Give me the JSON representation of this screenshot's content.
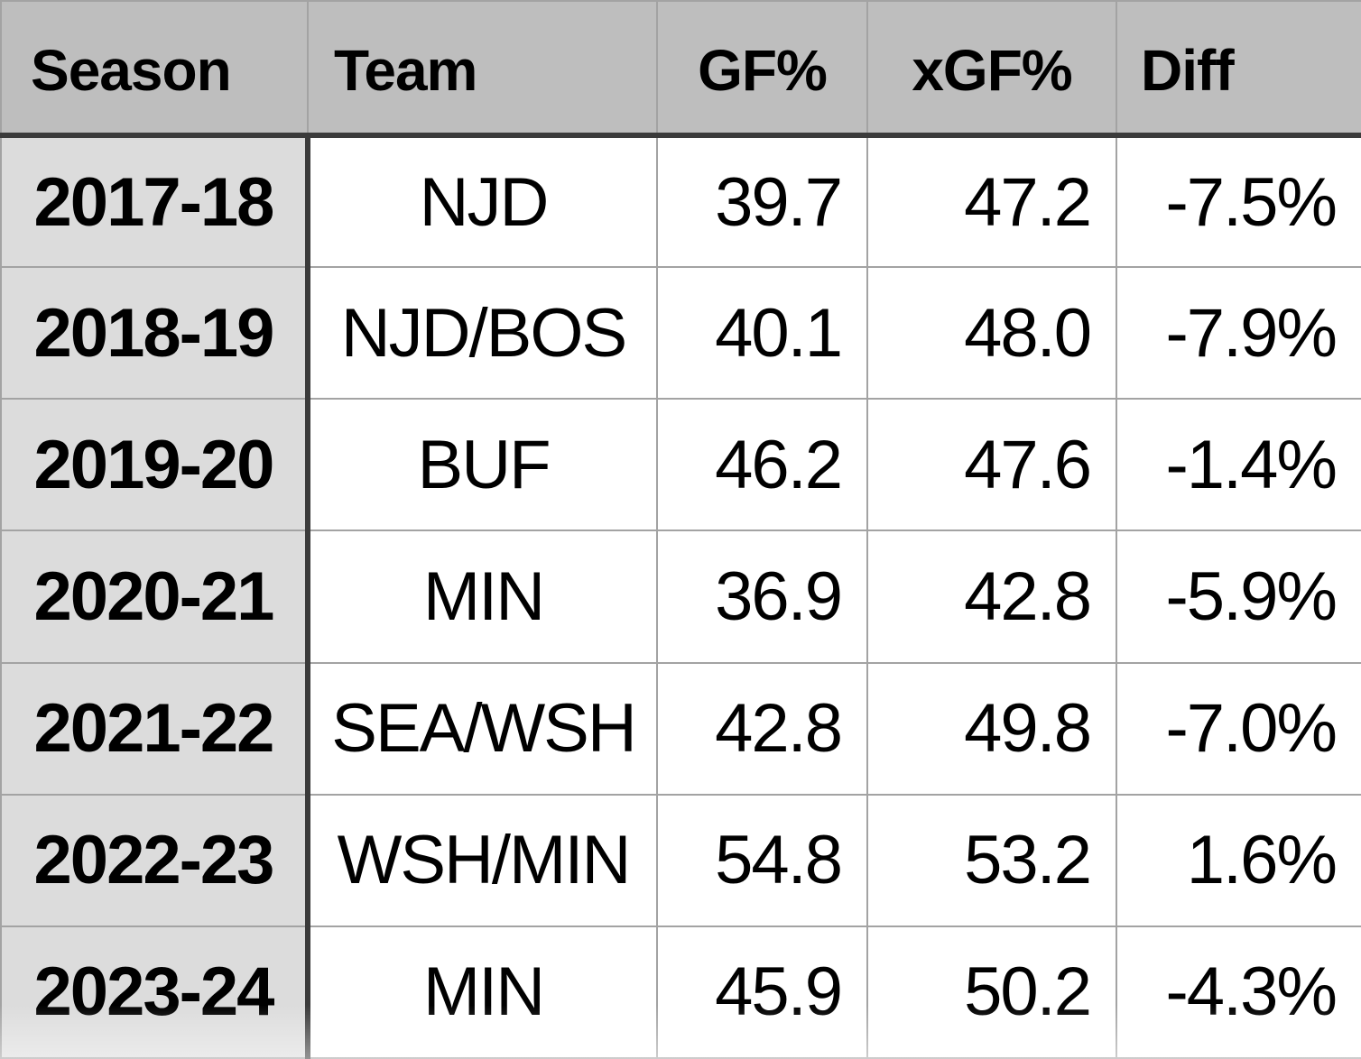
{
  "colors": {
    "header_bg": "#bebebe",
    "season_col_bg": "#dcdcdc",
    "cell_bg": "#ffffff",
    "grid_line": "#a3a3a3",
    "heavy_divider": "#3b3b3b",
    "text": "#000000"
  },
  "chart_data": {
    "type": "table",
    "title": "",
    "columns": [
      {
        "key": "season",
        "label": "Season"
      },
      {
        "key": "team",
        "label": "Team"
      },
      {
        "key": "gf_pct",
        "label": "GF%"
      },
      {
        "key": "xgf_pct",
        "label": "xGF%"
      },
      {
        "key": "diff",
        "label": "Diff"
      }
    ],
    "rows": [
      {
        "season": "2017-18",
        "team": "NJD",
        "gf_pct": "39.7",
        "xgf_pct": "47.2",
        "diff": "-7.5%"
      },
      {
        "season": "2018-19",
        "team": "NJD/BOS",
        "gf_pct": "40.1",
        "xgf_pct": "48.0",
        "diff": "-7.9%"
      },
      {
        "season": "2019-20",
        "team": "BUF",
        "gf_pct": "46.2",
        "xgf_pct": "47.6",
        "diff": "-1.4%"
      },
      {
        "season": "2020-21",
        "team": "MIN",
        "gf_pct": "36.9",
        "xgf_pct": "42.8",
        "diff": "-5.9%"
      },
      {
        "season": "2021-22",
        "team": "SEA/WSH",
        "gf_pct": "42.8",
        "xgf_pct": "49.8",
        "diff": "-7.0%"
      },
      {
        "season": "2022-23",
        "team": "WSH/MIN",
        "gf_pct": "54.8",
        "xgf_pct": "53.2",
        "diff": "1.6%"
      },
      {
        "season": "2023-24",
        "team": "MIN",
        "gf_pct": "45.9",
        "xgf_pct": "50.2",
        "diff": "-4.3%"
      }
    ]
  }
}
